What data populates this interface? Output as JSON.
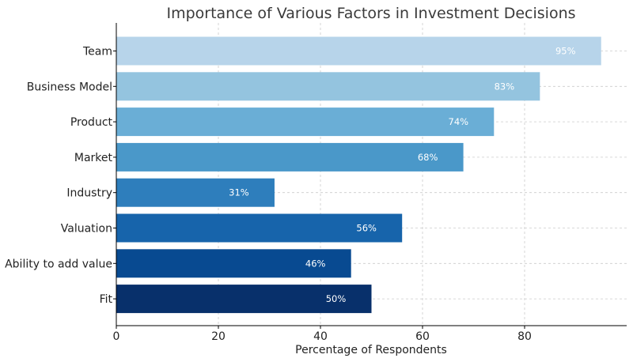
{
  "chart_data": {
    "type": "bar",
    "orientation": "horizontal",
    "title": "Importance of Various Factors in Investment Decisions",
    "xlabel": "Percentage of Respondents",
    "ylabel": "",
    "xlim": [
      0,
      100
    ],
    "xticks": [
      0,
      20,
      40,
      60,
      80
    ],
    "grid": true,
    "categories": [
      "Team",
      "Business Model",
      "Product",
      "Market",
      "Industry",
      "Valuation",
      "Ability to add value",
      "Fit"
    ],
    "values": [
      95,
      83,
      74,
      68,
      31,
      56,
      46,
      50
    ],
    "value_labels": [
      "95%",
      "83%",
      "74%",
      "68%",
      "31%",
      "56%",
      "46%",
      "50%"
    ],
    "colors": [
      "#b7d4ea",
      "#94c4df",
      "#6aaed6",
      "#4a98c9",
      "#2e7ebc",
      "#1764ab",
      "#084a91",
      "#08306b"
    ]
  }
}
